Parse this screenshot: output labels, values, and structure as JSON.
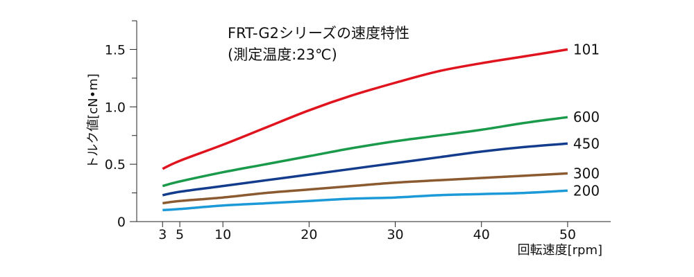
{
  "chart_data": {
    "type": "line",
    "title": "FRT-G2シリーズの速度特性",
    "subtitle": "(測定温度:23℃)",
    "xlabel": "回転速度[rpm]",
    "ylabel": "トルク値[cN•m]",
    "xlim": [
      0,
      55
    ],
    "ylim": [
      0,
      1.75
    ],
    "x_ticks": [
      3,
      5,
      10,
      20,
      30,
      40,
      50
    ],
    "x_tick_labels": [
      "3",
      "5",
      "10",
      "20",
      "30",
      "40",
      "50"
    ],
    "y_ticks": [
      0,
      0.5,
      1.0,
      1.5
    ],
    "y_tick_labels": [
      "0",
      "0.5",
      "1.0",
      "1.5"
    ],
    "y_minor_ticks": [
      0.25,
      0.75,
      1.25,
      1.75
    ],
    "grid": false,
    "legend": "labels at line ends (right)",
    "x": [
      3,
      5,
      10,
      15,
      20,
      25,
      30,
      35,
      40,
      45,
      50
    ],
    "series": [
      {
        "name": "101",
        "color": "#e0141e",
        "values": [
          0.46,
          0.53,
          0.67,
          0.82,
          0.97,
          1.1,
          1.21,
          1.31,
          1.38,
          1.44,
          1.5
        ]
      },
      {
        "name": "600",
        "color": "#1a9a4a",
        "values": [
          0.31,
          0.35,
          0.43,
          0.5,
          0.57,
          0.64,
          0.7,
          0.75,
          0.8,
          0.86,
          0.91
        ]
      },
      {
        "name": "450",
        "color": "#143c8c",
        "values": [
          0.23,
          0.26,
          0.31,
          0.36,
          0.41,
          0.46,
          0.51,
          0.56,
          0.61,
          0.65,
          0.68
        ]
      },
      {
        "name": "300",
        "color": "#8b5a30",
        "values": [
          0.16,
          0.18,
          0.21,
          0.25,
          0.28,
          0.31,
          0.34,
          0.36,
          0.38,
          0.4,
          0.42
        ]
      },
      {
        "name": "200",
        "color": "#1c9ad8",
        "values": [
          0.1,
          0.11,
          0.14,
          0.16,
          0.18,
          0.2,
          0.21,
          0.23,
          0.24,
          0.25,
          0.27
        ]
      }
    ]
  }
}
